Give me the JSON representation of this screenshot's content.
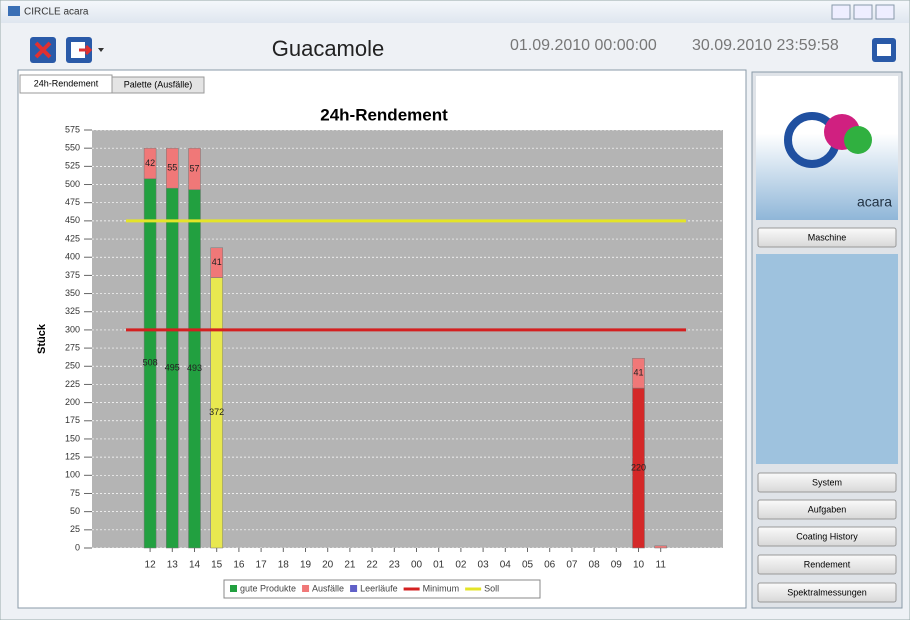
{
  "window": {
    "title": "CIRCLE acara"
  },
  "toolbar": {
    "title": "Guacamole",
    "start": "01.09.2010 00:00:00",
    "end": "30.09.2010 23:59:58"
  },
  "tabs": [
    "24h-Rendement",
    "Palette (Ausfälle)"
  ],
  "chart_data": {
    "type": "bar",
    "stacked": true,
    "title": "24h-Rendement",
    "y_label": "Stück",
    "categories": [
      "12",
      "13",
      "14",
      "15",
      "16",
      "17",
      "18",
      "19",
      "20",
      "21",
      "22",
      "23",
      "00",
      "01",
      "02",
      "03",
      "04",
      "05",
      "06",
      "07",
      "08",
      "09",
      "10",
      "11"
    ],
    "series": [
      {
        "name": "gute Produkte",
        "color": "#22a040",
        "values": [
          508,
          495,
          493,
          372,
          null,
          null,
          null,
          null,
          null,
          null,
          null,
          null,
          null,
          null,
          null,
          null,
          null,
          null,
          null,
          null,
          null,
          null,
          220,
          null
        ],
        "point_colors": [
          "#22a040",
          "#22a040",
          "#22a040",
          "#e8e850",
          null,
          null,
          null,
          null,
          null,
          null,
          null,
          null,
          null,
          null,
          null,
          null,
          null,
          null,
          null,
          null,
          null,
          null,
          "#d42828",
          null
        ]
      },
      {
        "name": "Ausfälle",
        "color": "#f07878",
        "values": [
          42,
          55,
          57,
          41,
          null,
          null,
          null,
          null,
          null,
          null,
          null,
          null,
          null,
          null,
          null,
          null,
          null,
          null,
          null,
          null,
          null,
          null,
          41,
          3
        ]
      },
      {
        "name": "Leerläufe",
        "color": "#6060c8",
        "values": [
          null,
          null,
          null,
          null,
          null,
          null,
          null,
          null,
          null,
          null,
          null,
          null,
          null,
          null,
          null,
          null,
          null,
          null,
          null,
          null,
          null,
          null,
          null,
          null
        ]
      }
    ],
    "reference_lines": [
      {
        "name": "Minimum",
        "color": "#d42020",
        "value": 300
      },
      {
        "name": "Soll",
        "color": "#e4e428",
        "value": 450
      }
    ],
    "ylim": [
      0,
      575
    ],
    "yticks": [
      0,
      25,
      50,
      75,
      100,
      125,
      150,
      175,
      200,
      225,
      250,
      275,
      300,
      325,
      350,
      375,
      400,
      425,
      450,
      475,
      500,
      525,
      550,
      575
    ],
    "grid": true
  },
  "sidebar": {
    "logo_text": "acara",
    "buttons": [
      "Maschine",
      "System",
      "Aufgaben",
      "Coating History",
      "Rendement",
      "Spektralmessungen"
    ]
  }
}
